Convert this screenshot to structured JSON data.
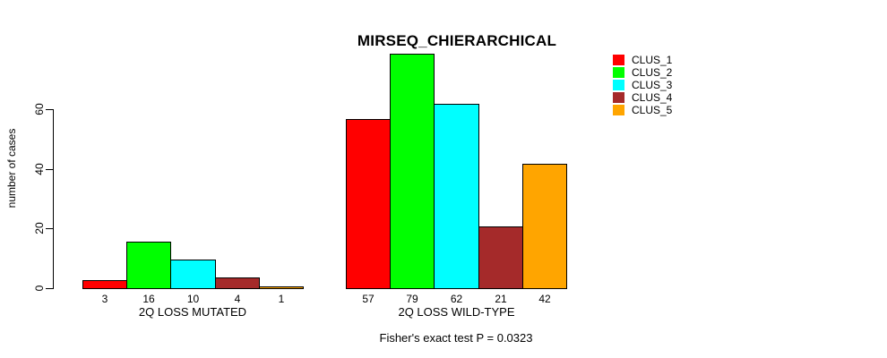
{
  "chart_data": {
    "type": "bar",
    "title": "MIRSEQ_CHIERARCHICAL",
    "ylabel": "number of cases",
    "xlabel": "",
    "categories": [
      "CLUS_1",
      "CLUS_2",
      "CLUS_3",
      "CLUS_4",
      "CLUS_5"
    ],
    "groups": [
      {
        "label": "2Q LOSS MUTATED",
        "values": [
          3,
          16,
          10,
          4,
          1
        ]
      },
      {
        "label": "2Q LOSS WILD-TYPE",
        "values": [
          57,
          79,
          62,
          21,
          42
        ]
      }
    ],
    "colors": [
      "#FF0000",
      "#00FF00",
      "#00FFFF",
      "#A52A2A",
      "#FFA500"
    ],
    "yticks": [
      0,
      20,
      40,
      60
    ],
    "ylim": [
      0,
      82
    ],
    "grid": false,
    "legend_position": "top-right",
    "legend": {
      "items": [
        {
          "label": "CLUS_1",
          "color": "#FF0000"
        },
        {
          "label": "CLUS_2",
          "color": "#00FF00"
        },
        {
          "label": "CLUS_3",
          "color": "#00FFFF"
        },
        {
          "label": "CLUS_4",
          "color": "#A52A2A"
        },
        {
          "label": "CLUS_5",
          "color": "#FFA500"
        }
      ]
    },
    "annotation": "Fisher's exact test P = 0.0323"
  }
}
